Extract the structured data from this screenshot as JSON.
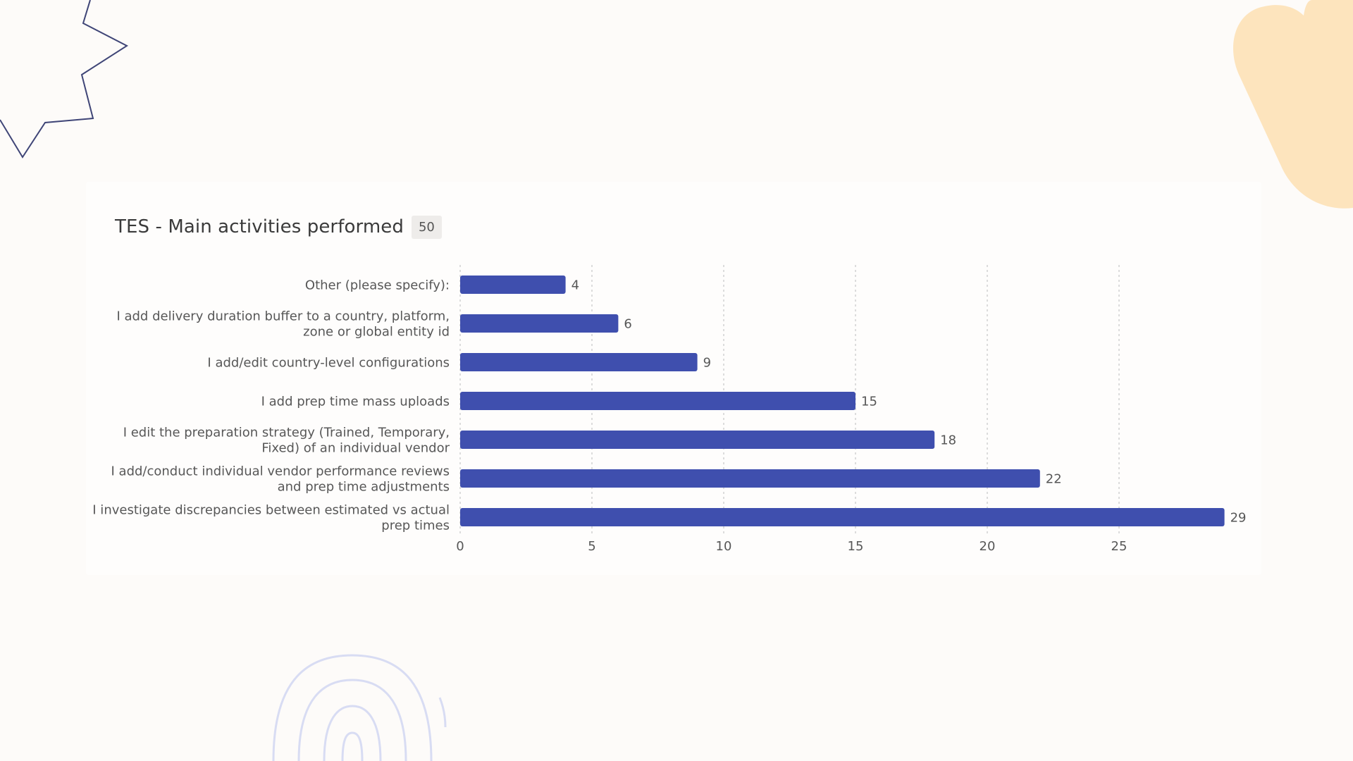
{
  "card": {
    "title": "TES - Main activities performed",
    "response_count": "50"
  },
  "decorations": {
    "star_icon": "star-outline-icon",
    "blob_icon": "blob-shape-icon",
    "rings_icon": "concentric-rings-icon",
    "star_color": "#3f4577",
    "blob_color": "#fde4bd",
    "rings_color": "#d8dcf3"
  },
  "chart_data": {
    "type": "bar",
    "orientation": "horizontal",
    "categories": [
      [
        "Other (please specify):"
      ],
      [
        "I add delivery duration buffer to a country, platform,",
        "zone or global entity id"
      ],
      [
        "I add/edit country-level configurations"
      ],
      [
        "I add prep time mass uploads"
      ],
      [
        "I edit the preparation strategy (Trained, Temporary,",
        "Fixed) of an individual vendor"
      ],
      [
        "I add/conduct individual vendor performance reviews",
        "and prep time adjustments"
      ],
      [
        "I investigate discrepancies between estimated vs actual",
        "prep times"
      ]
    ],
    "values": [
      4,
      6,
      9,
      15,
      18,
      22,
      29
    ],
    "xticks": [
      0,
      5,
      10,
      15,
      20,
      25
    ],
    "xlim": [
      0,
      29
    ],
    "grid": true,
    "bar_color": "#3f4fae",
    "data_labels": true
  }
}
